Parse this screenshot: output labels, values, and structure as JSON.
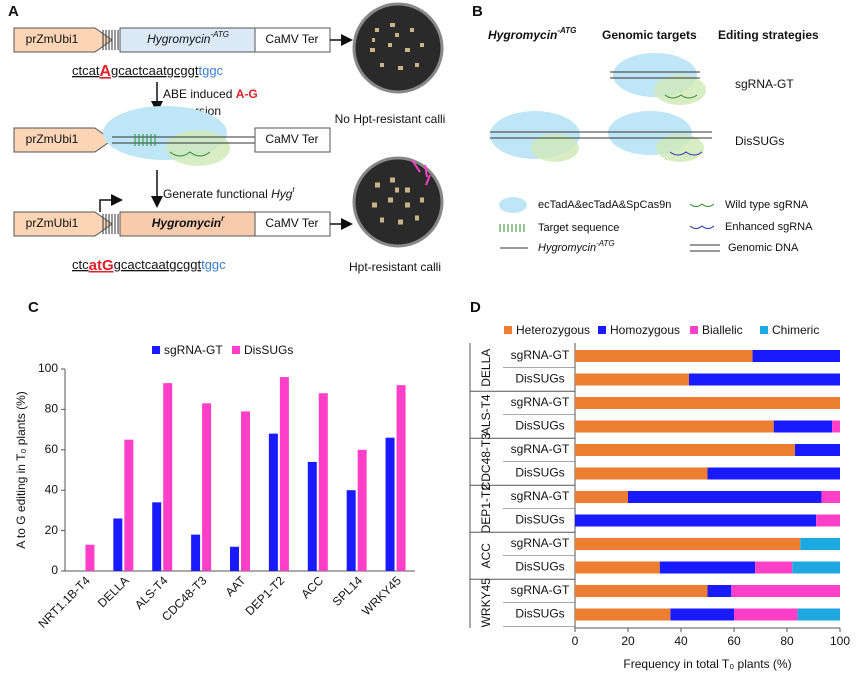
{
  "panels": {
    "a": "A",
    "b": "B",
    "c": "C",
    "d": "D"
  },
  "diagram_a": {
    "promoter": "prZmUbi1",
    "gene_atg": [
      "Hygromycin",
      "-ATG"
    ],
    "terminator": "CaMV Ter",
    "seq_before": [
      "ctcat",
      "A",
      "gcactcaatgcggt",
      "tggc"
    ],
    "step1": [
      "ABE  induced ",
      "A-G",
      "conversion"
    ],
    "result1": "No Hpt-resistant calli",
    "step2": [
      "Generate functional ",
      "Hyg",
      "r"
    ],
    "gene_r": [
      "Hygromycin",
      "r"
    ],
    "seq_after": [
      "ctc",
      "atG",
      "gcactcaatgcggt",
      "tggc"
    ],
    "result2": "Hpt-resistant calli"
  },
  "diagram_b": {
    "headers": [
      [
        "Hygromycin",
        "-ATG"
      ],
      "Genomic targets",
      "Editing strategies"
    ],
    "strategies": [
      "sgRNA-GT",
      "DisSUGs"
    ],
    "legend": [
      "ecTadA&ecTadA&SpCas9n",
      "Wild type sgRNA",
      "Target sequence",
      "Enhanced sgRNA",
      [
        "Hygromycin",
        "-ATG"
      ],
      "Genomic DNA"
    ]
  },
  "chart_data": [
    {
      "type": "bar",
      "ylabel": "A to G editing in T₀ plants (%)",
      "categories": [
        "NRT1.1B-T4",
        "DELLA",
        "ALS-T4",
        "CDC48-T3",
        "AAT",
        "DEP1-T2",
        "ACC",
        "SPL14",
        "WRKY45"
      ],
      "series": [
        {
          "name": "sgRNA-GT",
          "color": "#1a1aff",
          "values": [
            null,
            26,
            34,
            18,
            12,
            68,
            54,
            40,
            66
          ]
        },
        {
          "name": "DisSUGs",
          "color": "#ff3fc8",
          "values": [
            13,
            65,
            93,
            83,
            79,
            96,
            88,
            60,
            92
          ]
        }
      ],
      "ylim": [
        0,
        100
      ],
      "yticks": [
        0,
        20,
        40,
        60,
        80,
        100
      ],
      "legend": "top"
    },
    {
      "type": "stacked-barh",
      "xlabel": "Frequency in total T₀ plants (%)",
      "groups": [
        "DELLA",
        "ALS-T4",
        "CDC48-T3",
        "DEP1-T2",
        "ACC",
        "WRKY45"
      ],
      "categories": [
        "sgRNA-GT",
        "DisSUGs",
        "sgRNA-GT",
        "DisSUGs",
        "sgRNA-GT",
        "DisSUGs",
        "sgRNA-GT",
        "DisSUGs",
        "sgRNA-GT",
        "DisSUGs",
        "sgRNA-GT",
        "DisSUGs"
      ],
      "series": [
        {
          "name": "Heterozygous",
          "color": "#ed7d31",
          "values": [
            67,
            43,
            100,
            75,
            83,
            50,
            20,
            0,
            85,
            32,
            50,
            36
          ]
        },
        {
          "name": "Homozygous",
          "color": "#1a1aff",
          "values": [
            33,
            57,
            0,
            22,
            17,
            50,
            73,
            91,
            0,
            36,
            9,
            24
          ]
        },
        {
          "name": "Biallelic",
          "color": "#ff3fc8",
          "values": [
            0,
            0,
            0,
            3,
            0,
            0,
            7,
            9,
            0,
            14,
            41,
            24
          ]
        },
        {
          "name": "Chimeric",
          "color": "#1ea7e1",
          "values": [
            0,
            0,
            0,
            0,
            0,
            0,
            0,
            0,
            15,
            18,
            0,
            16
          ]
        }
      ],
      "xlim": [
        0,
        100
      ],
      "xticks": [
        0,
        20,
        40,
        60,
        80,
        100
      ],
      "legend": "top"
    }
  ]
}
